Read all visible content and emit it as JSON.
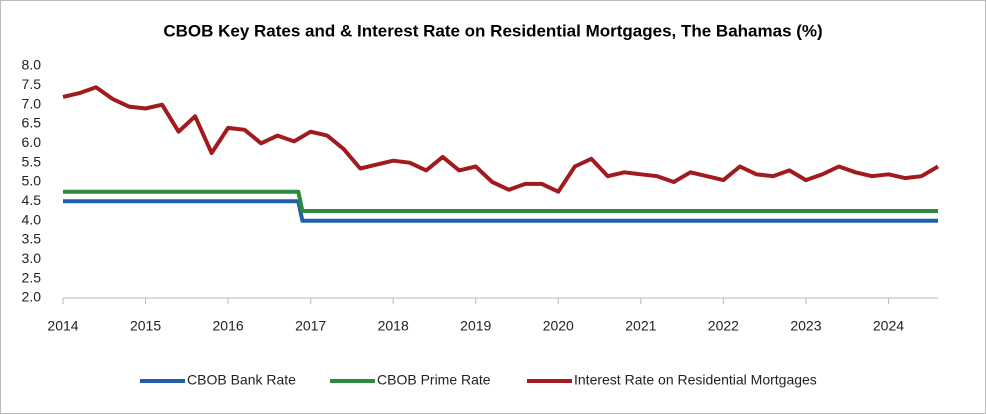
{
  "chart_data": {
    "type": "line",
    "title": "CBOB Key Rates and & Interest Rate on Residential Mortgages, The Bahamas (%)",
    "xlim": [
      2014,
      2024.6
    ],
    "xticks": [
      2014,
      2015,
      2016,
      2017,
      2018,
      2019,
      2020,
      2021,
      2022,
      2023,
      2024
    ],
    "ylim": [
      2.0,
      8.0
    ],
    "yticks": [
      {
        "value": 2,
        "label": "2.0"
      },
      2.5,
      {
        "value": 3,
        "label": "3.0"
      },
      3.5,
      {
        "value": 4,
        "label": "4.0"
      },
      4.5,
      {
        "value": 5,
        "label": "5.0"
      },
      5.5,
      {
        "value": 6,
        "label": "6.0"
      },
      6.5,
      {
        "value": 7,
        "label": "7.0"
      },
      7.5,
      {
        "value": 8,
        "label": "8.0"
      }
    ],
    "grid": false,
    "legend": "bottom",
    "series": [
      {
        "name": "CBOB Bank Rate",
        "color": "#1f5fa8",
        "x": [
          2014,
          2016.85,
          2016.9,
          2024.6
        ],
        "values": [
          4.5,
          4.5,
          4.0,
          4.0
        ]
      },
      {
        "name": "CBOB Prime Rate",
        "color": "#2e8b3e",
        "x": [
          2014,
          2016.85,
          2016.9,
          2024.6
        ],
        "values": [
          4.75,
          4.75,
          4.25,
          4.25
        ]
      },
      {
        "name": "Interest Rate on Residential Mortgages",
        "color": "#a11a1d",
        "x": [
          2014.0,
          2014.2,
          2014.4,
          2014.6,
          2014.8,
          2015.0,
          2015.2,
          2015.4,
          2015.6,
          2015.8,
          2016.0,
          2016.2,
          2016.4,
          2016.6,
          2016.8,
          2017.0,
          2017.2,
          2017.4,
          2017.6,
          2017.8,
          2018.0,
          2018.2,
          2018.4,
          2018.6,
          2018.8,
          2019.0,
          2019.2,
          2019.4,
          2019.6,
          2019.8,
          2020.0,
          2020.2,
          2020.4,
          2020.6,
          2020.8,
          2021.0,
          2021.2,
          2021.4,
          2021.6,
          2021.8,
          2022.0,
          2022.2,
          2022.4,
          2022.6,
          2022.8,
          2023.0,
          2023.2,
          2023.4,
          2023.6,
          2023.8,
          2024.0,
          2024.2,
          2024.4,
          2024.6
        ],
        "values": [
          7.2,
          7.3,
          7.45,
          7.15,
          6.95,
          6.9,
          7.0,
          6.3,
          6.7,
          5.75,
          6.4,
          6.35,
          6.0,
          6.2,
          6.05,
          6.3,
          6.2,
          5.85,
          5.35,
          5.45,
          5.55,
          5.5,
          5.3,
          5.65,
          5.3,
          5.4,
          5.0,
          4.8,
          4.95,
          4.95,
          4.75,
          5.4,
          5.6,
          5.15,
          5.25,
          5.2,
          5.15,
          5.0,
          5.25,
          5.15,
          5.05,
          5.4,
          5.2,
          5.15,
          5.3,
          5.05,
          5.2,
          5.4,
          5.25,
          5.15,
          5.2,
          5.1,
          5.15,
          5.4
        ]
      }
    ]
  }
}
